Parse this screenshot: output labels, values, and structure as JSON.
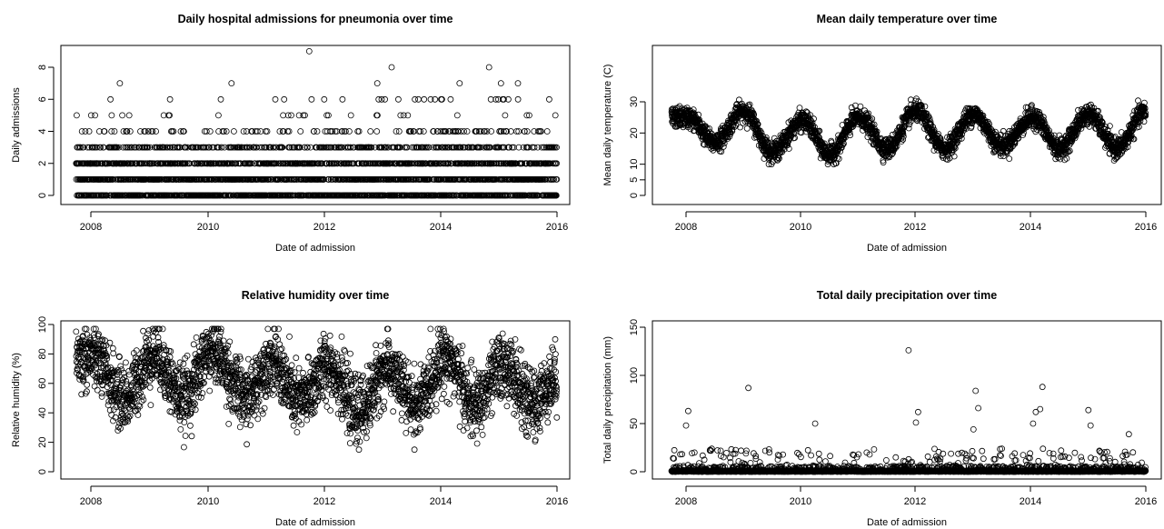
{
  "chart_data": [
    {
      "type": "scatter",
      "title": "Daily hospital admissions for pneumonia over time",
      "xlabel": "Date of admission",
      "ylabel": "Daily admissions",
      "xlim": [
        "2007-08-01",
        "2016-03-01"
      ],
      "ylim": [
        0,
        9
      ],
      "x_ticks": [
        "2008",
        "2010",
        "2012",
        "2014",
        "2016"
      ],
      "y_ticks": [
        "0",
        "2",
        "4",
        "6",
        "8"
      ],
      "grid": false,
      "series": [
        {
          "description_points": "one daily count per day from 2007-10 to 2015-12; dense bands at 0-3, sparse outliers up to 9",
          "x_start": "2007-10-01",
          "x_end": "2015-12-31",
          "values_range": [
            0,
            9
          ],
          "notable_points": [
            {
              "x": "2011-10-01",
              "y": 9
            },
            {
              "x": "2013-03-01",
              "y": 8
            },
            {
              "x": "2014-11-01",
              "y": 8
            },
            {
              "x": "2008-07-01",
              "y": 7
            },
            {
              "x": "2010-06-01",
              "y": 7
            },
            {
              "x": "2012-12-01",
              "y": 7
            },
            {
              "x": "2014-05-01",
              "y": 7
            },
            {
              "x": "2015-01-15",
              "y": 7
            },
            {
              "x": "2015-05-01",
              "y": 7
            }
          ]
        }
      ]
    },
    {
      "type": "scatter",
      "title": "Mean daily temperature over time",
      "xlabel": "Date of admission",
      "ylabel": "Mean daily temperature (C)",
      "xlim": [
        "2007-08-01",
        "2016-03-01"
      ],
      "ylim": [
        0,
        32
      ],
      "x_ticks": [
        "2008",
        "2010",
        "2012",
        "2014",
        "2016"
      ],
      "y_ticks": [
        "0",
        "5",
        "10",
        "20",
        "30"
      ],
      "grid": false,
      "series": [
        {
          "x_start": "2007-10-01",
          "x_end": "2015-12-31",
          "seasonal_peaks": [
            {
              "x": "2008-01-15",
              "y": 25
            },
            {
              "x": "2009-01-01",
              "y": 27
            },
            {
              "x": "2010-01-15",
              "y": 24
            },
            {
              "x": "2011-01-01",
              "y": 25
            },
            {
              "x": "2012-01-01",
              "y": 27
            },
            {
              "x": "2013-01-01",
              "y": 26
            },
            {
              "x": "2014-01-15",
              "y": 25
            },
            {
              "x": "2015-01-01",
              "y": 26
            },
            {
              "x": "2015-12-31",
              "y": 27
            }
          ],
          "seasonal_troughs": [
            {
              "x": "2008-07-01",
              "y": 17
            },
            {
              "x": "2009-07-01",
              "y": 14
            },
            {
              "x": "2010-07-01",
              "y": 13
            },
            {
              "x": "2011-07-01",
              "y": 15
            },
            {
              "x": "2012-07-01",
              "y": 15
            },
            {
              "x": "2013-07-01",
              "y": 16
            },
            {
              "x": "2014-07-01",
              "y": 15
            },
            {
              "x": "2015-07-01",
              "y": 15
            }
          ]
        }
      ]
    },
    {
      "type": "scatter",
      "title": "Relative humidity over time",
      "xlabel": "Date of admission",
      "ylabel": "Relative humidity (%)",
      "xlim": [
        "2007-08-01",
        "2016-03-01"
      ],
      "ylim": [
        0,
        100
      ],
      "x_ticks": [
        "2008",
        "2010",
        "2012",
        "2014",
        "2016"
      ],
      "y_ticks": [
        "0",
        "20",
        "40",
        "60",
        "80",
        "100"
      ],
      "grid": false,
      "series": [
        {
          "x_start": "2007-10-01",
          "x_end": "2015-12-31",
          "yearly_centers": [
            {
              "x": "2008-01-01",
              "y": 78
            },
            {
              "x": "2008-08-01",
              "y": 50
            },
            {
              "x": "2009-02-01",
              "y": 80
            },
            {
              "x": "2009-08-01",
              "y": 50
            },
            {
              "x": "2010-02-01",
              "y": 82
            },
            {
              "x": "2010-09-01",
              "y": 50
            },
            {
              "x": "2011-02-01",
              "y": 75
            },
            {
              "x": "2011-08-01",
              "y": 48
            },
            {
              "x": "2012-02-01",
              "y": 72
            },
            {
              "x": "2012-08-01",
              "y": 40
            },
            {
              "x": "2013-02-01",
              "y": 70
            },
            {
              "x": "2013-08-01",
              "y": 45
            },
            {
              "x": "2014-02-01",
              "y": 78
            },
            {
              "x": "2014-08-01",
              "y": 45
            },
            {
              "x": "2015-02-01",
              "y": 72
            },
            {
              "x": "2015-08-01",
              "y": 45
            },
            {
              "x": "2015-12-31",
              "y": 65
            }
          ],
          "min": 15,
          "max": 97
        }
      ]
    },
    {
      "type": "scatter",
      "title": "Total daily precipitation over time",
      "xlabel": "Date of admission",
      "ylabel": "Total daily precipitation (mm)",
      "xlim": [
        "2007-08-01",
        "2016-03-01"
      ],
      "ylim": [
        0,
        155
      ],
      "x_ticks": [
        "2008",
        "2010",
        "2012",
        "2014",
        "2016"
      ],
      "y_ticks": [
        "0",
        "50",
        "100",
        "150"
      ],
      "grid": false,
      "series": [
        {
          "x_start": "2007-10-01",
          "x_end": "2015-12-31",
          "notable_points": [
            {
              "x": "2011-11-15",
              "y": 126
            },
            {
              "x": "2009-02-01",
              "y": 87
            },
            {
              "x": "2014-03-15",
              "y": 88
            },
            {
              "x": "2013-01-15",
              "y": 84
            },
            {
              "x": "2013-02-01",
              "y": 66
            },
            {
              "x": "2015-01-01",
              "y": 64
            },
            {
              "x": "2008-01-15",
              "y": 63
            },
            {
              "x": "2012-01-15",
              "y": 62
            },
            {
              "x": "2014-02-01",
              "y": 62
            },
            {
              "x": "2014-03-01",
              "y": 65
            },
            {
              "x": "2012-01-01",
              "y": 51
            },
            {
              "x": "2010-04-01",
              "y": 50
            },
            {
              "x": "2008-01-01",
              "y": 48
            },
            {
              "x": "2013-01-01",
              "y": 44
            },
            {
              "x": "2015-01-15",
              "y": 48
            },
            {
              "x": "2014-01-15",
              "y": 50
            },
            {
              "x": "2015-09-15",
              "y": 39
            },
            {
              "x": "2008-06-01",
              "y": 22
            },
            {
              "x": "2011-01-01",
              "y": 18
            }
          ]
        }
      ]
    }
  ]
}
